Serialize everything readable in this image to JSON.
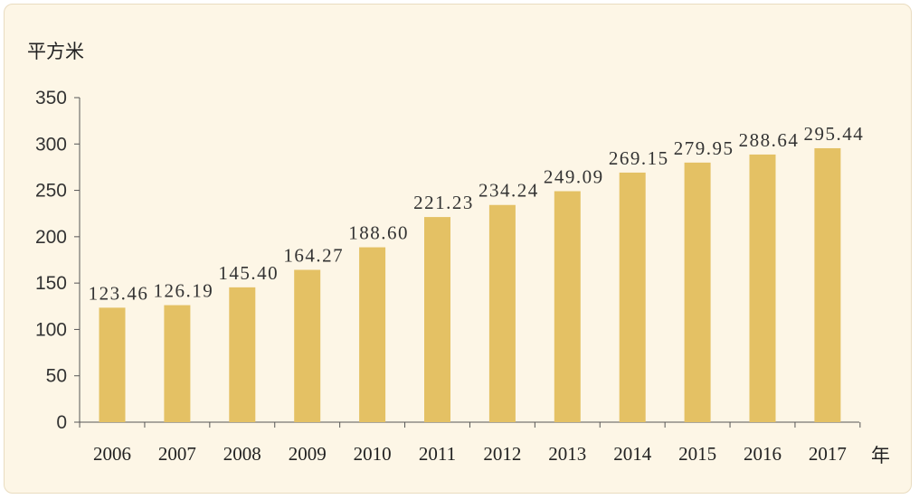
{
  "chart_data": {
    "type": "bar",
    "ylabel": "平方米",
    "xlabel": "年",
    "categories": [
      "2006",
      "2007",
      "2008",
      "2009",
      "2010",
      "2011",
      "2012",
      "2013",
      "2014",
      "2015",
      "2016",
      "2017"
    ],
    "values": [
      123.46,
      126.19,
      145.4,
      164.27,
      188.6,
      221.23,
      234.24,
      249.09,
      269.15,
      279.95,
      288.64,
      295.44
    ],
    "value_labels": [
      "123.46",
      "126.19",
      "145.40",
      "164.27",
      "188.60",
      "221.23",
      "234.24",
      "249.09",
      "269.15",
      "279.95",
      "288.64",
      "295.44"
    ],
    "y_ticks": [
      0,
      50,
      100,
      150,
      200,
      250,
      300,
      350
    ],
    "ylim": [
      0,
      350
    ],
    "grid": false,
    "legend": "none",
    "colors": {
      "bar": "#e4c164",
      "axis": "#555555",
      "background": "#fdf6e6"
    }
  }
}
